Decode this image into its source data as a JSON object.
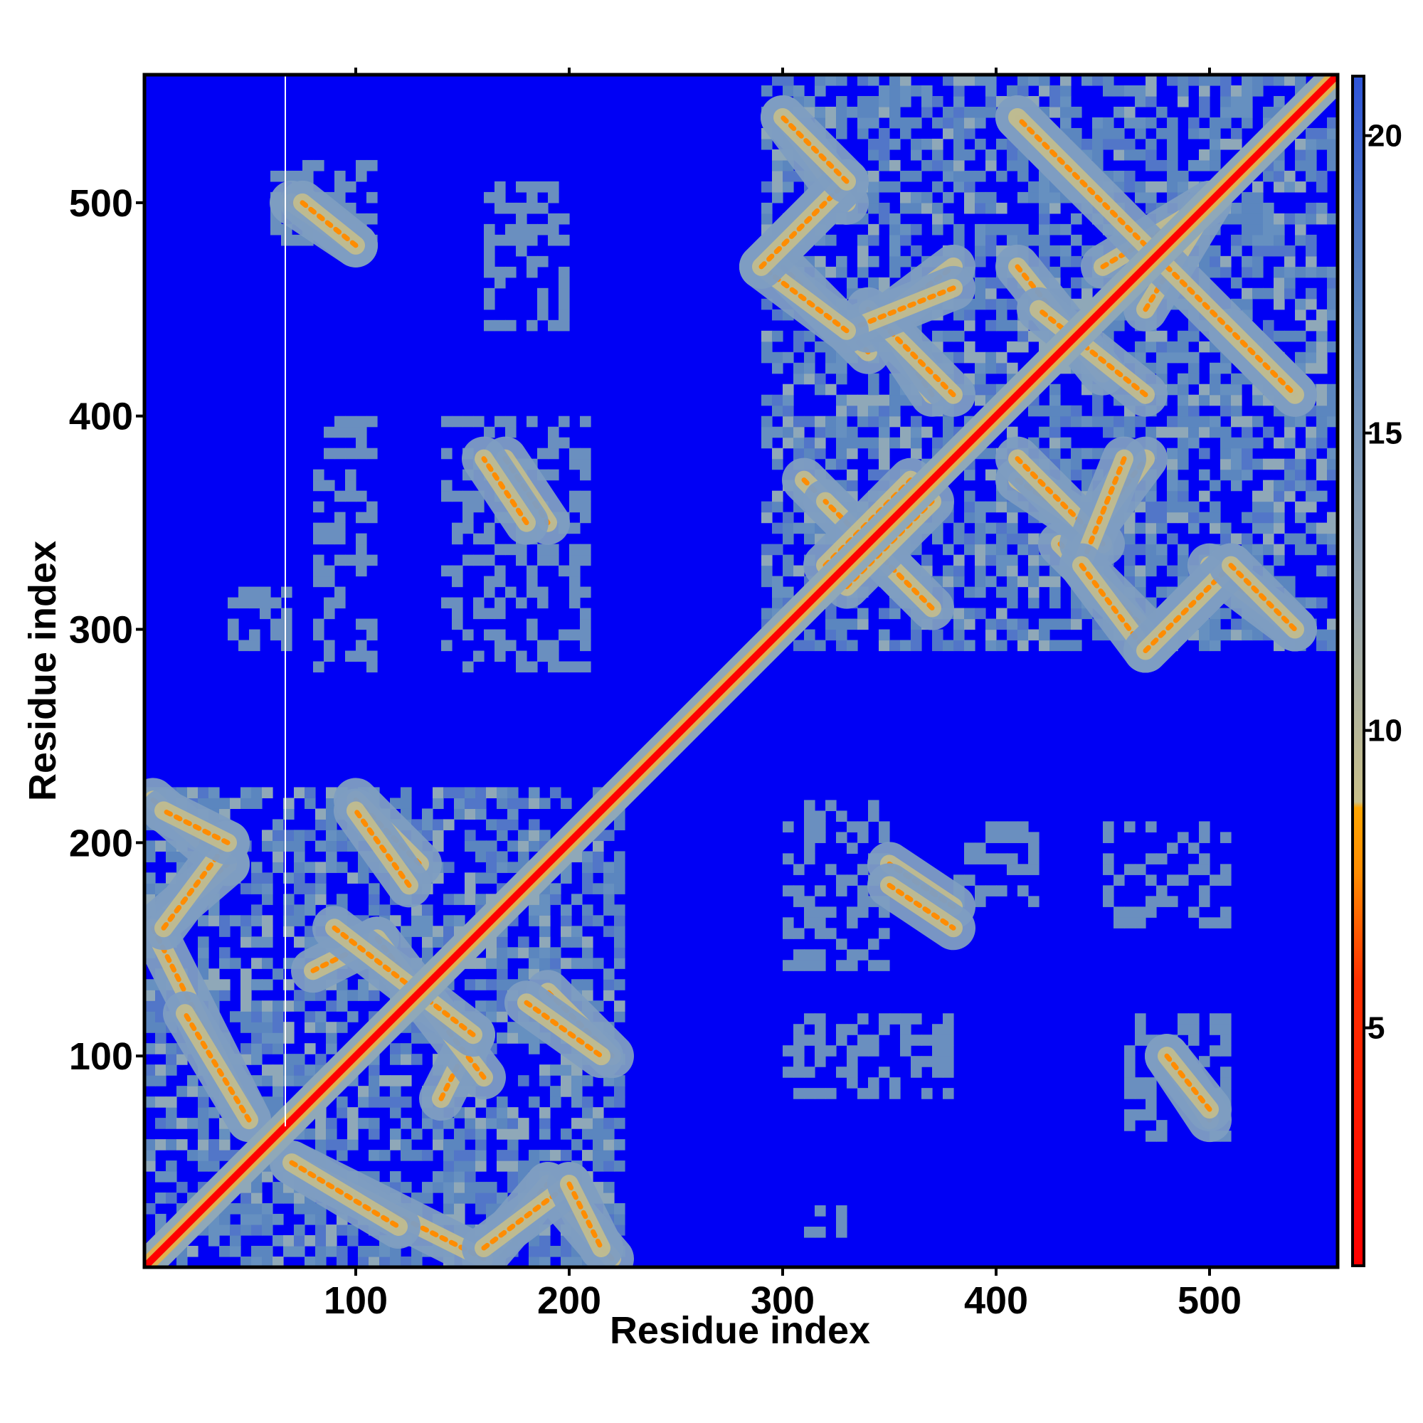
{
  "chart_data": {
    "type": "heatmap",
    "title": "",
    "xlabel": "Residue index",
    "ylabel": "Residue index",
    "n_residues": 560,
    "xlim": [
      1,
      560
    ],
    "ylim": [
      1,
      560
    ],
    "x_ticks": [
      100,
      200,
      300,
      400,
      500
    ],
    "y_ticks": [
      100,
      200,
      300,
      400,
      500
    ],
    "colorbar": {
      "range": [
        1,
        21
      ],
      "ticks": [
        5,
        10,
        15,
        20
      ],
      "colors": [
        "#ff0000",
        "#ff8c00",
        "#d8c27a",
        "#8fa8b8",
        "#5b86bf",
        "#0000f5"
      ]
    },
    "background_color": "#0000f5",
    "diagonal_color": "#ff0000",
    "gap_column_x": 67,
    "contact_domains": [
      {
        "x": [
          1,
          225
        ],
        "y": [
          1,
          225
        ]
      },
      {
        "x": [
          290,
          560
        ],
        "y": [
          290,
          560
        ]
      }
    ],
    "contact_motifs": [
      {
        "x0": 5,
        "y0": 220,
        "x1": 40,
        "y1": 190
      },
      {
        "x0": 5,
        "y0": 160,
        "x1": 40,
        "y1": 190
      },
      {
        "x0": 5,
        "y0": 160,
        "x1": 50,
        "y1": 70
      },
      {
        "x0": 70,
        "y0": 50,
        "x1": 120,
        "y1": 20
      },
      {
        "x0": 160,
        "y0": 10,
        "x1": 200,
        "y1": 40
      },
      {
        "x0": 200,
        "y0": 40,
        "x1": 215,
        "y1": 10
      },
      {
        "x0": 80,
        "y0": 140,
        "x1": 110,
        "y1": 155
      },
      {
        "x0": 110,
        "y0": 155,
        "x1": 160,
        "y1": 90
      },
      {
        "x0": 100,
        "y0": 220,
        "x1": 130,
        "y1": 190
      },
      {
        "x0": 180,
        "y0": 125,
        "x1": 215,
        "y1": 100
      },
      {
        "x0": 70,
        "y0": 500,
        "x1": 100,
        "y1": 480
      },
      {
        "x0": 480,
        "y0": 100,
        "x1": 500,
        "y1": 75
      },
      {
        "x0": 300,
        "y0": 540,
        "x1": 330,
        "y1": 500
      },
      {
        "x0": 290,
        "y0": 470,
        "x1": 330,
        "y1": 510
      },
      {
        "x0": 300,
        "y0": 470,
        "x1": 340,
        "y1": 430
      },
      {
        "x0": 340,
        "y0": 440,
        "x1": 380,
        "y1": 470
      },
      {
        "x0": 370,
        "y0": 410,
        "x1": 350,
        "y1": 440
      },
      {
        "x0": 410,
        "y0": 540,
        "x1": 440,
        "y1": 510
      },
      {
        "x0": 410,
        "y0": 470,
        "x1": 450,
        "y1": 420
      },
      {
        "x0": 450,
        "y0": 470,
        "x1": 500,
        "y1": 500
      },
      {
        "x0": 480,
        "y0": 470,
        "x1": 540,
        "y1": 410
      },
      {
        "x0": 410,
        "y0": 380,
        "x1": 450,
        "y1": 340
      },
      {
        "x0": 460,
        "y0": 380,
        "x1": 440,
        "y1": 330
      },
      {
        "x0": 440,
        "y0": 330,
        "x1": 470,
        "y1": 290
      },
      {
        "x0": 470,
        "y0": 290,
        "x1": 510,
        "y1": 330
      },
      {
        "x0": 510,
        "y0": 330,
        "x1": 540,
        "y1": 300
      },
      {
        "x0": 310,
        "y0": 370,
        "x1": 360,
        "y1": 320
      },
      {
        "x0": 320,
        "y0": 330,
        "x1": 360,
        "y1": 370
      },
      {
        "x0": 170,
        "y0": 380,
        "x1": 190,
        "y1": 350
      },
      {
        "x0": 350,
        "y0": 180,
        "x1": 380,
        "y1": 160
      }
    ],
    "speckle_regions": [
      {
        "x": [
          40,
          70
        ],
        "y": [
          290,
          320
        ]
      },
      {
        "x": [
          80,
          110
        ],
        "y": [
          280,
          400
        ]
      },
      {
        "x": [
          140,
          210
        ],
        "y": [
          280,
          400
        ]
      },
      {
        "x": [
          160,
          200
        ],
        "y": [
          440,
          510
        ]
      },
      {
        "x": [
          60,
          110
        ],
        "y": [
          480,
          520
        ]
      },
      {
        "x": [
          300,
          380
        ],
        "y": [
          80,
          120
        ]
      },
      {
        "x": [
          300,
          350
        ],
        "y": [
          140,
          220
        ]
      },
      {
        "x": [
          380,
          420
        ],
        "y": [
          170,
          210
        ]
      },
      {
        "x": [
          450,
          510
        ],
        "y": [
          160,
          210
        ]
      },
      {
        "x": [
          460,
          510
        ],
        "y": [
          60,
          120
        ]
      },
      {
        "x": [
          310,
          330
        ],
        "y": [
          15,
          30
        ]
      }
    ]
  }
}
